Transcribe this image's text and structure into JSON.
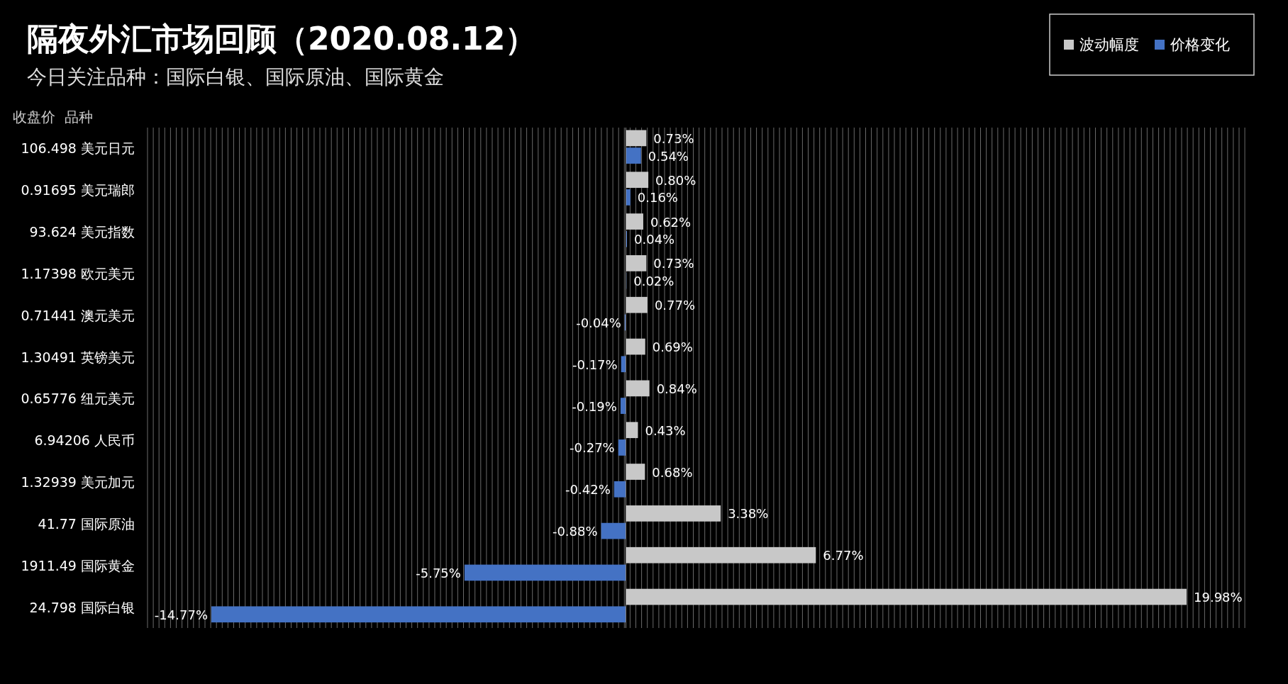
{
  "chart_data": {
    "type": "bar",
    "orientation": "horizontal",
    "title": "隔夜外汇市场回顾（2020.08.12）",
    "subtitle": "今日关注品种：国际白银、国际原油、国际黄金",
    "annotations": [
      "收盘价  品种"
    ],
    "legend": "top right",
    "grid": "x",
    "categories": [
      "106.498 美元日元",
      "0.91695 美元瑞郎",
      "93.624 美元指数",
      "1.17398 欧元美元",
      "0.71441 澳元美元",
      "1.30491 英镑美元",
      "0.65776 纽元美元",
      "6.94206 人民币",
      "1.32939 美元加元",
      "41.77 国际原油",
      "1911.49 国际黄金",
      "24.798 国际白银"
    ],
    "series": [
      {
        "name": "波动幅度",
        "color": "#c8c8c8",
        "values": [
          0.73,
          0.8,
          0.62,
          0.73,
          0.77,
          0.69,
          0.84,
          0.43,
          0.68,
          3.38,
          6.77,
          19.98
        ],
        "value_labels": [
          "0.73%",
          "0.80%",
          "0.62%",
          "0.73%",
          "0.77%",
          "0.69%",
          "0.84%",
          "0.43%",
          "0.68%",
          "3.38%",
          "6.77%",
          "19.98%"
        ]
      },
      {
        "name": "价格变化",
        "color": "#4472c4",
        "values": [
          0.54,
          0.16,
          0.04,
          0.02,
          -0.04,
          -0.17,
          -0.19,
          -0.27,
          -0.42,
          -0.88,
          -5.75,
          -14.77
        ],
        "value_labels": [
          "0.54%",
          "0.16%",
          "0.04%",
          "0.02%",
          "-0.04%",
          "-0.17%",
          "-0.19%",
          "-0.27%",
          "-0.42%",
          "-0.88%",
          "-5.75%",
          "-14.77%"
        ]
      }
    ]
  }
}
